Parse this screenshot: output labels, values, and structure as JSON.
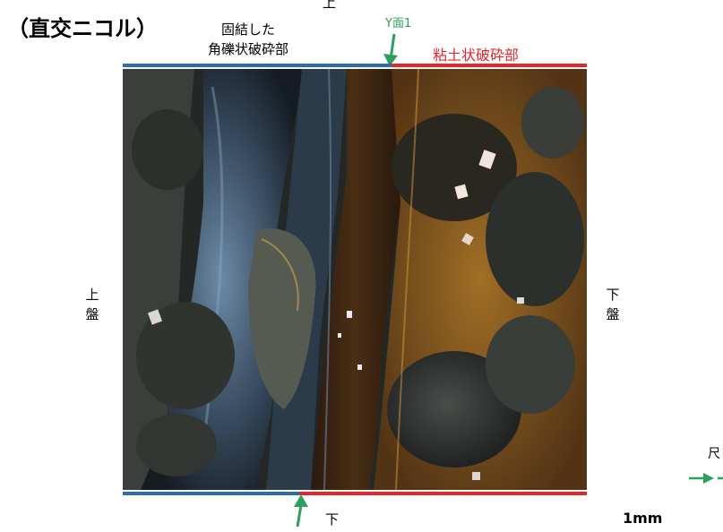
{
  "title": "（直交ニコル）",
  "labels": {
    "cemented_line1": "固結した",
    "cemented_line2": "角礫状破砕部",
    "top_edge": "上",
    "y_plane": "Y面1",
    "clay_zone": "粘土状破砕部",
    "left_side": [
      "上",
      "盤"
    ],
    "right_side": [
      "下",
      "盤"
    ],
    "bottom_edge": "下",
    "scale": "1mm",
    "scale_title_partial": "尺"
  },
  "colors": {
    "blue_bar": "#2a6db5",
    "red_bar": "#e8262a",
    "green_arrow": "#2ca05a",
    "clay_text": "#e8262a"
  },
  "icons": {
    "y_plane_arrow": "arrow-down-icon",
    "bottom_arrow": "arrow-up-icon",
    "scale_arrow": "arrow-right-icon"
  }
}
